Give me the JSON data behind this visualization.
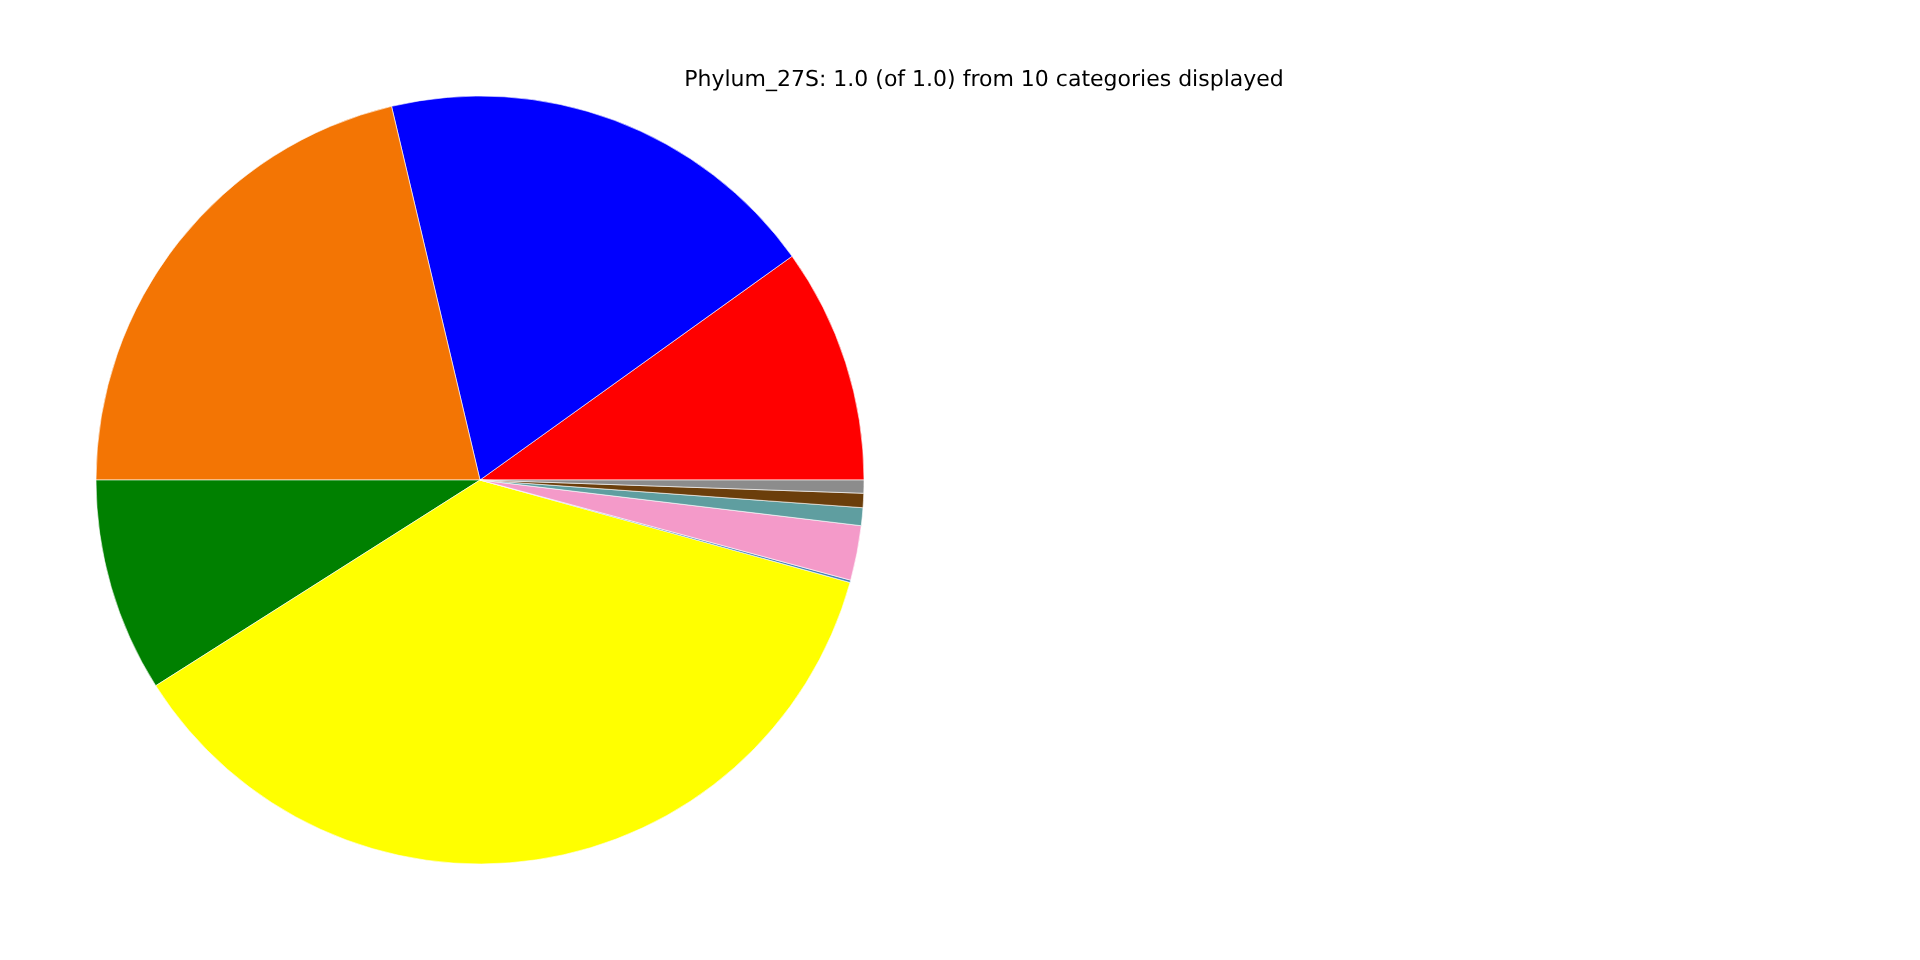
{
  "chart_data": {
    "type": "pie",
    "title": "Phylum_27S: 1.0 (of 1.0) from 10 categories displayed",
    "categories": [
      null,
      null,
      null,
      null,
      null,
      null,
      null,
      null,
      null,
      null
    ],
    "values": [
      9.9,
      18.8,
      21.3,
      9.0,
      36.7,
      0.1,
      2.3,
      0.75,
      0.6,
      0.55
    ],
    "colors": [
      "#ff0000",
      "#0000ff",
      "#f37504",
      "#008000",
      "#ffff00",
      "#4682b4",
      "#f49ac9",
      "#5f9ea0",
      "#6b3e0b",
      "#8c8c8c"
    ]
  }
}
